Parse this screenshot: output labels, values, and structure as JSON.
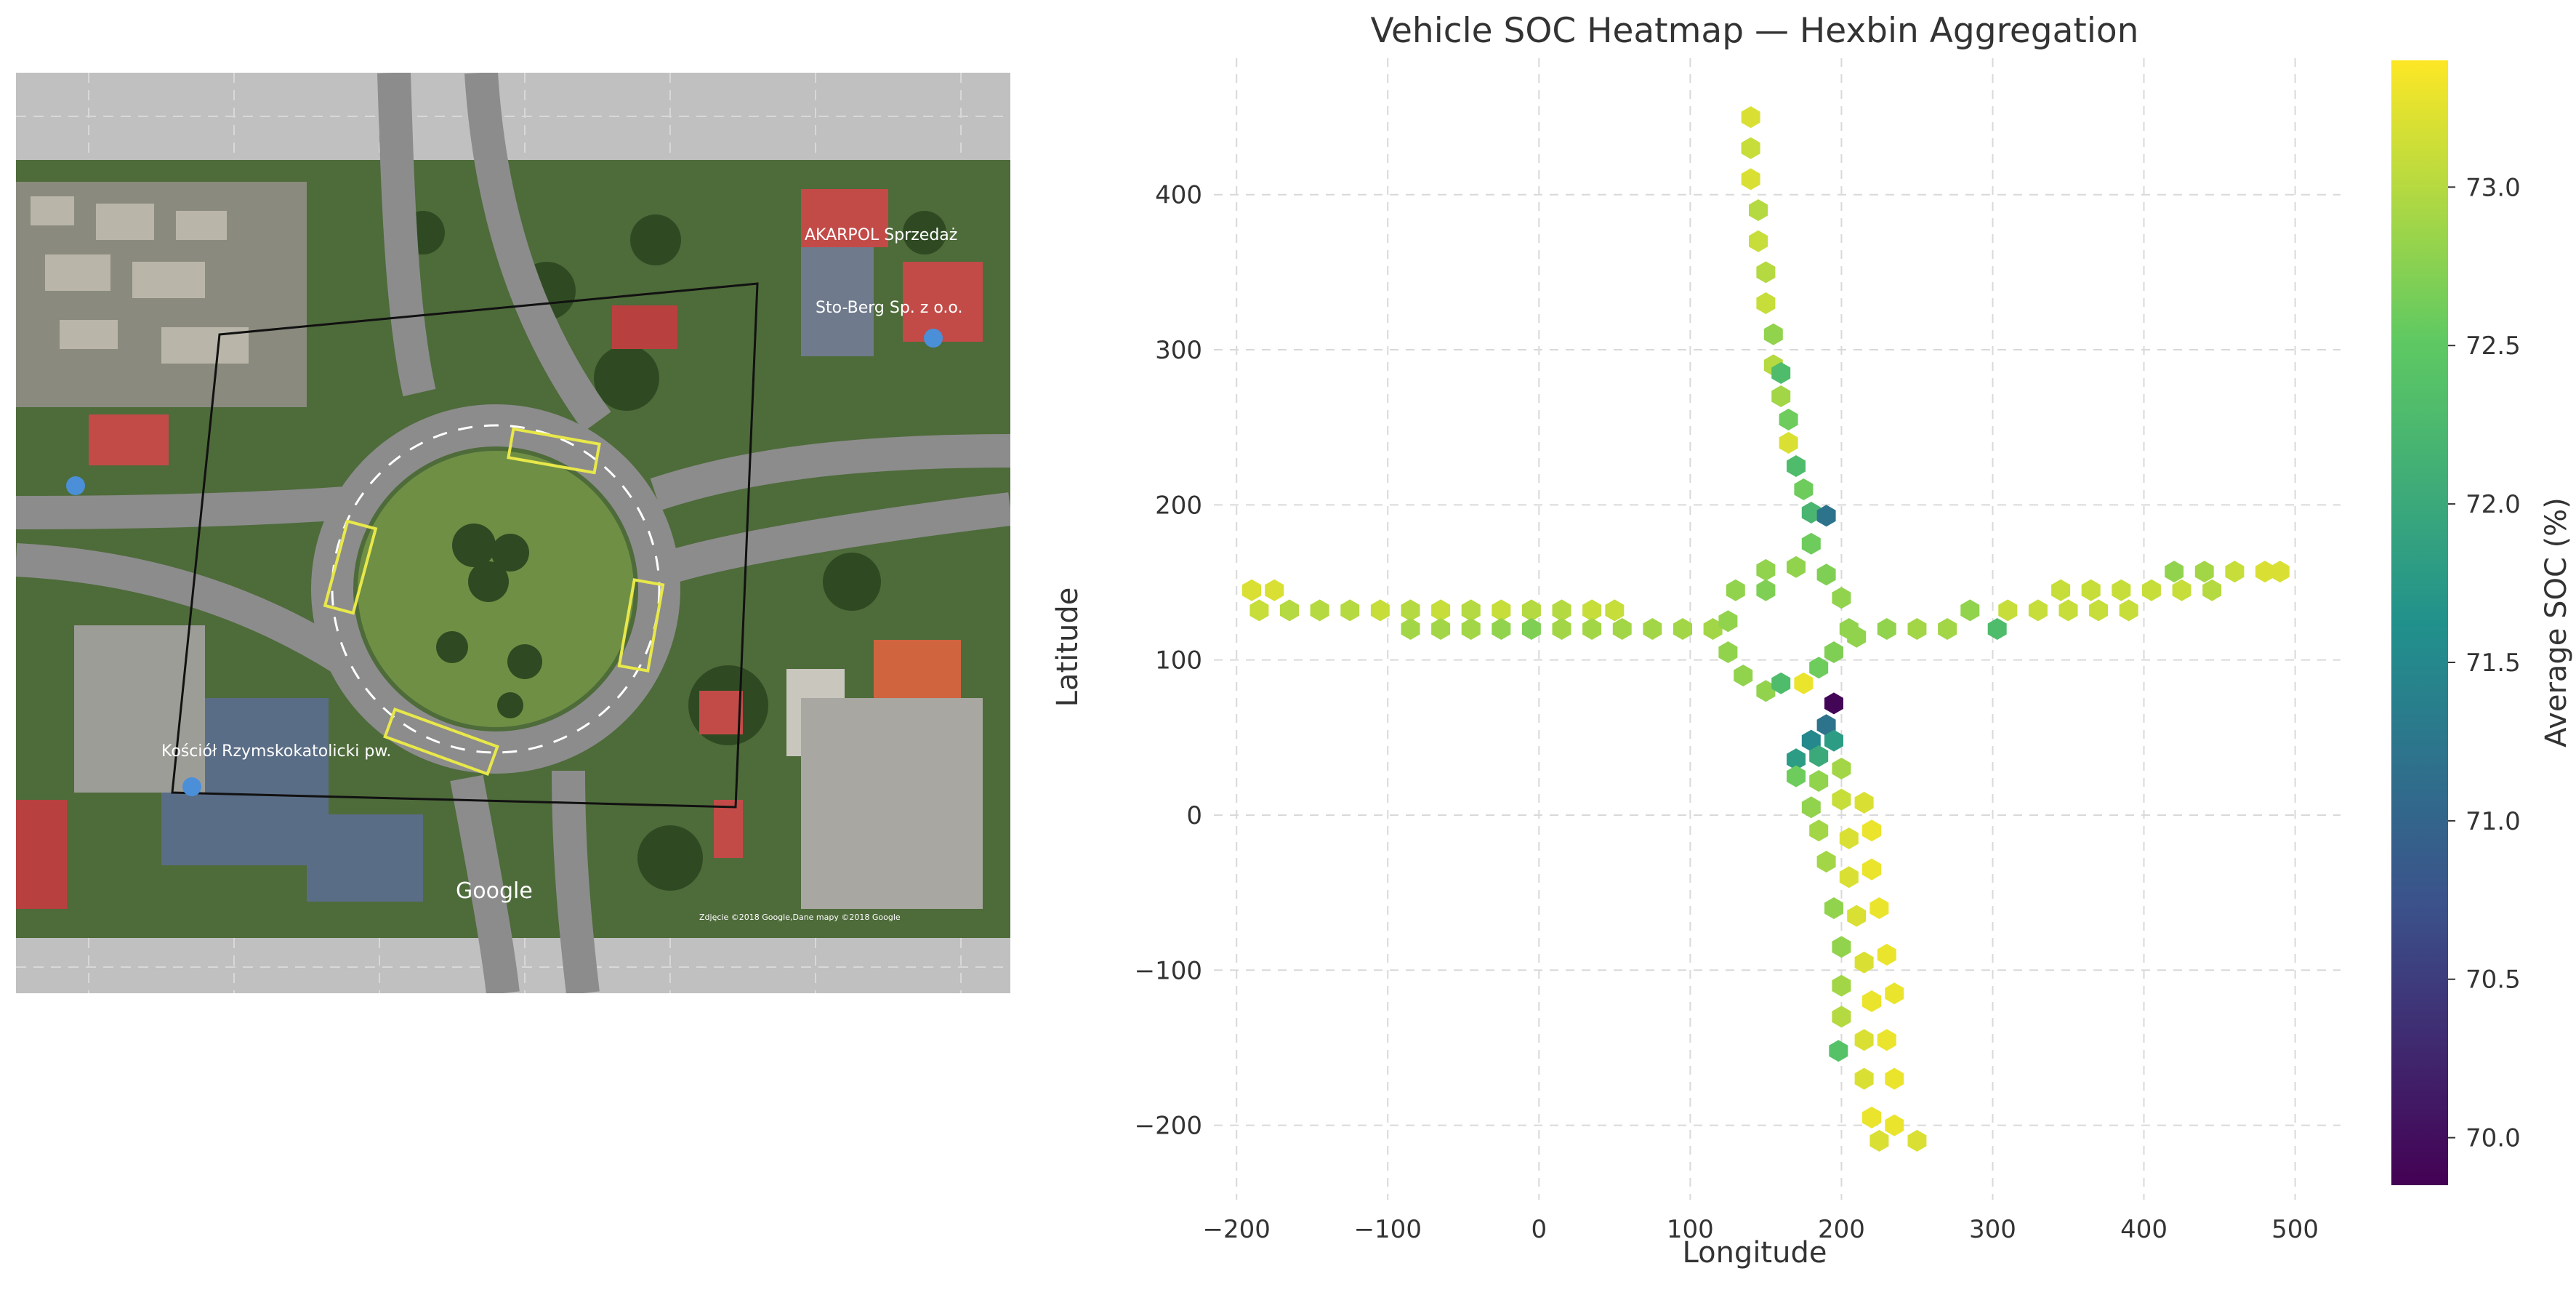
{
  "map": {
    "labels": {
      "shop": "AKARPOL Sprzedaż",
      "business": "Sto-Berg Sp. z o.o.",
      "church": "Kościół Rzymskokatolicki pw.",
      "attribution": "Zdjęcie ©2018 Google,Dane mapy ©2018 Google",
      "google": "Google"
    }
  },
  "colorbar": {
    "label": "Average SOC (%)",
    "ticks": [
      70.0,
      70.5,
      71.0,
      71.5,
      72.0,
      72.5,
      73.0
    ],
    "range": [
      69.85,
      73.4
    ],
    "colormap": [
      "#440154",
      "#3b528b",
      "#21918c",
      "#5ec962",
      "#fde725"
    ]
  },
  "chart_data": {
    "type": "heatmap",
    "title": "Vehicle SOC Heatmap — Hexbin Aggregation",
    "xlabel": "Longitude",
    "ylabel": "Latitude",
    "xlim": [
      -215,
      530
    ],
    "ylim": [
      -248,
      488
    ],
    "xticks": [
      -200,
      -100,
      0,
      100,
      200,
      300,
      400,
      500
    ],
    "yticks": [
      -200,
      -100,
      0,
      100,
      200,
      300,
      400
    ],
    "grid": true,
    "colorbar_label": "Average SOC (%)",
    "hexbin_cells": [
      {
        "x": 140,
        "y": 450,
        "soc": 73.2
      },
      {
        "x": 140,
        "y": 430,
        "soc": 73.1
      },
      {
        "x": 140,
        "y": 410,
        "soc": 73.2
      },
      {
        "x": 145,
        "y": 390,
        "soc": 73.0
      },
      {
        "x": 145,
        "y": 370,
        "soc": 73.1
      },
      {
        "x": 150,
        "y": 350,
        "soc": 73.0
      },
      {
        "x": 150,
        "y": 330,
        "soc": 73.1
      },
      {
        "x": 155,
        "y": 310,
        "soc": 72.8
      },
      {
        "x": 155,
        "y": 290,
        "soc": 73.0
      },
      {
        "x": 160,
        "y": 285,
        "soc": 72.3
      },
      {
        "x": 160,
        "y": 270,
        "soc": 72.9
      },
      {
        "x": 165,
        "y": 255,
        "soc": 72.6
      },
      {
        "x": 165,
        "y": 240,
        "soc": 73.2
      },
      {
        "x": 170,
        "y": 225,
        "soc": 72.3
      },
      {
        "x": 175,
        "y": 210,
        "soc": 72.6
      },
      {
        "x": 180,
        "y": 195,
        "soc": 72.2
      },
      {
        "x": 190,
        "y": 193,
        "soc": 71.2
      },
      {
        "x": 180,
        "y": 175,
        "soc": 72.6
      },
      {
        "x": -190,
        "y": 145,
        "soc": 73.2
      },
      {
        "x": -175,
        "y": 145,
        "soc": 73.2
      },
      {
        "x": -185,
        "y": 132,
        "soc": 73.1
      },
      {
        "x": -165,
        "y": 132,
        "soc": 73.0
      },
      {
        "x": -145,
        "y": 132,
        "soc": 73.0
      },
      {
        "x": -125,
        "y": 132,
        "soc": 73.0
      },
      {
        "x": -105,
        "y": 132,
        "soc": 73.1
      },
      {
        "x": -85,
        "y": 132,
        "soc": 73.0
      },
      {
        "x": -65,
        "y": 132,
        "soc": 73.1
      },
      {
        "x": -45,
        "y": 132,
        "soc": 73.0
      },
      {
        "x": -25,
        "y": 132,
        "soc": 73.1
      },
      {
        "x": -5,
        "y": 132,
        "soc": 73.0
      },
      {
        "x": 15,
        "y": 132,
        "soc": 73.0
      },
      {
        "x": 35,
        "y": 132,
        "soc": 73.1
      },
      {
        "x": 50,
        "y": 132,
        "soc": 73.1
      },
      {
        "x": -85,
        "y": 120,
        "soc": 72.9
      },
      {
        "x": -65,
        "y": 120,
        "soc": 72.9
      },
      {
        "x": -45,
        "y": 120,
        "soc": 72.9
      },
      {
        "x": -25,
        "y": 120,
        "soc": 72.8
      },
      {
        "x": -5,
        "y": 120,
        "soc": 72.7
      },
      {
        "x": 15,
        "y": 120,
        "soc": 72.9
      },
      {
        "x": 35,
        "y": 120,
        "soc": 72.9
      },
      {
        "x": 55,
        "y": 120,
        "soc": 72.9
      },
      {
        "x": 75,
        "y": 120,
        "soc": 72.9
      },
      {
        "x": 95,
        "y": 120,
        "soc": 72.9
      },
      {
        "x": 115,
        "y": 120,
        "soc": 72.9
      },
      {
        "x": 130,
        "y": 145,
        "soc": 72.8
      },
      {
        "x": 150,
        "y": 158,
        "soc": 72.8
      },
      {
        "x": 170,
        "y": 160,
        "soc": 72.8
      },
      {
        "x": 190,
        "y": 155,
        "soc": 72.7
      },
      {
        "x": 200,
        "y": 140,
        "soc": 72.8
      },
      {
        "x": 205,
        "y": 120,
        "soc": 72.8
      },
      {
        "x": 125,
        "y": 125,
        "soc": 72.8
      },
      {
        "x": 125,
        "y": 105,
        "soc": 72.8
      },
      {
        "x": 135,
        "y": 90,
        "soc": 72.8
      },
      {
        "x": 150,
        "y": 80,
        "soc": 72.8
      },
      {
        "x": 150,
        "y": 145,
        "soc": 72.7
      },
      {
        "x": 160,
        "y": 85,
        "soc": 72.3
      },
      {
        "x": 175,
        "y": 85,
        "soc": 73.3
      },
      {
        "x": 185,
        "y": 95,
        "soc": 72.6
      },
      {
        "x": 195,
        "y": 105,
        "soc": 72.7
      },
      {
        "x": 210,
        "y": 115,
        "soc": 72.8
      },
      {
        "x": 195,
        "y": 72,
        "soc": 69.9
      },
      {
        "x": 190,
        "y": 58,
        "soc": 71.2
      },
      {
        "x": 180,
        "y": 48,
        "soc": 71.5
      },
      {
        "x": 195,
        "y": 48,
        "soc": 71.8
      },
      {
        "x": 170,
        "y": 36,
        "soc": 71.8
      },
      {
        "x": 185,
        "y": 38,
        "soc": 72.0
      },
      {
        "x": 170,
        "y": 25,
        "soc": 72.6
      },
      {
        "x": 185,
        "y": 22,
        "soc": 72.8
      },
      {
        "x": 200,
        "y": 30,
        "soc": 72.9
      },
      {
        "x": 180,
        "y": 5,
        "soc": 72.8
      },
      {
        "x": 200,
        "y": 10,
        "soc": 73.1
      },
      {
        "x": 215,
        "y": 8,
        "soc": 73.2
      },
      {
        "x": 185,
        "y": -10,
        "soc": 72.9
      },
      {
        "x": 205,
        "y": -15,
        "soc": 73.2
      },
      {
        "x": 220,
        "y": -10,
        "soc": 73.3
      },
      {
        "x": 190,
        "y": -30,
        "soc": 72.9
      },
      {
        "x": 205,
        "y": -40,
        "soc": 73.2
      },
      {
        "x": 220,
        "y": -35,
        "soc": 73.3
      },
      {
        "x": 195,
        "y": -60,
        "soc": 72.8
      },
      {
        "x": 210,
        "y": -65,
        "soc": 73.2
      },
      {
        "x": 225,
        "y": -60,
        "soc": 73.3
      },
      {
        "x": 200,
        "y": -85,
        "soc": 72.8
      },
      {
        "x": 215,
        "y": -95,
        "soc": 73.2
      },
      {
        "x": 230,
        "y": -90,
        "soc": 73.3
      },
      {
        "x": 200,
        "y": -110,
        "soc": 72.9
      },
      {
        "x": 220,
        "y": -120,
        "soc": 73.3
      },
      {
        "x": 235,
        "y": -115,
        "soc": 73.3
      },
      {
        "x": 200,
        "y": -130,
        "soc": 73.0
      },
      {
        "x": 215,
        "y": -145,
        "soc": 73.2
      },
      {
        "x": 230,
        "y": -145,
        "soc": 73.3
      },
      {
        "x": 198,
        "y": -152,
        "soc": 72.4
      },
      {
        "x": 215,
        "y": -170,
        "soc": 73.2
      },
      {
        "x": 235,
        "y": -170,
        "soc": 73.3
      },
      {
        "x": 220,
        "y": -195,
        "soc": 73.3
      },
      {
        "x": 235,
        "y": -200,
        "soc": 73.3
      },
      {
        "x": 225,
        "y": -210,
        "soc": 73.2
      },
      {
        "x": 250,
        "y": -210,
        "soc": 73.2
      },
      {
        "x": 230,
        "y": 120,
        "soc": 72.8
      },
      {
        "x": 250,
        "y": 120,
        "soc": 72.9
      },
      {
        "x": 270,
        "y": 120,
        "soc": 72.9
      },
      {
        "x": 285,
        "y": 132,
        "soc": 72.8
      },
      {
        "x": 303,
        "y": 120,
        "soc": 72.3
      },
      {
        "x": 310,
        "y": 132,
        "soc": 73.1
      },
      {
        "x": 330,
        "y": 132,
        "soc": 73.1
      },
      {
        "x": 350,
        "y": 132,
        "soc": 73.1
      },
      {
        "x": 370,
        "y": 132,
        "soc": 73.1
      },
      {
        "x": 390,
        "y": 132,
        "soc": 73.1
      },
      {
        "x": 345,
        "y": 145,
        "soc": 73.1
      },
      {
        "x": 365,
        "y": 145,
        "soc": 73.1
      },
      {
        "x": 385,
        "y": 145,
        "soc": 73.1
      },
      {
        "x": 405,
        "y": 145,
        "soc": 73.1
      },
      {
        "x": 425,
        "y": 145,
        "soc": 73.1
      },
      {
        "x": 445,
        "y": 145,
        "soc": 73.0
      },
      {
        "x": 420,
        "y": 157,
        "soc": 72.8
      },
      {
        "x": 440,
        "y": 157,
        "soc": 72.9
      },
      {
        "x": 460,
        "y": 157,
        "soc": 73.1
      },
      {
        "x": 480,
        "y": 157,
        "soc": 73.2
      },
      {
        "x": 490,
        "y": 157,
        "soc": 73.2
      }
    ]
  }
}
